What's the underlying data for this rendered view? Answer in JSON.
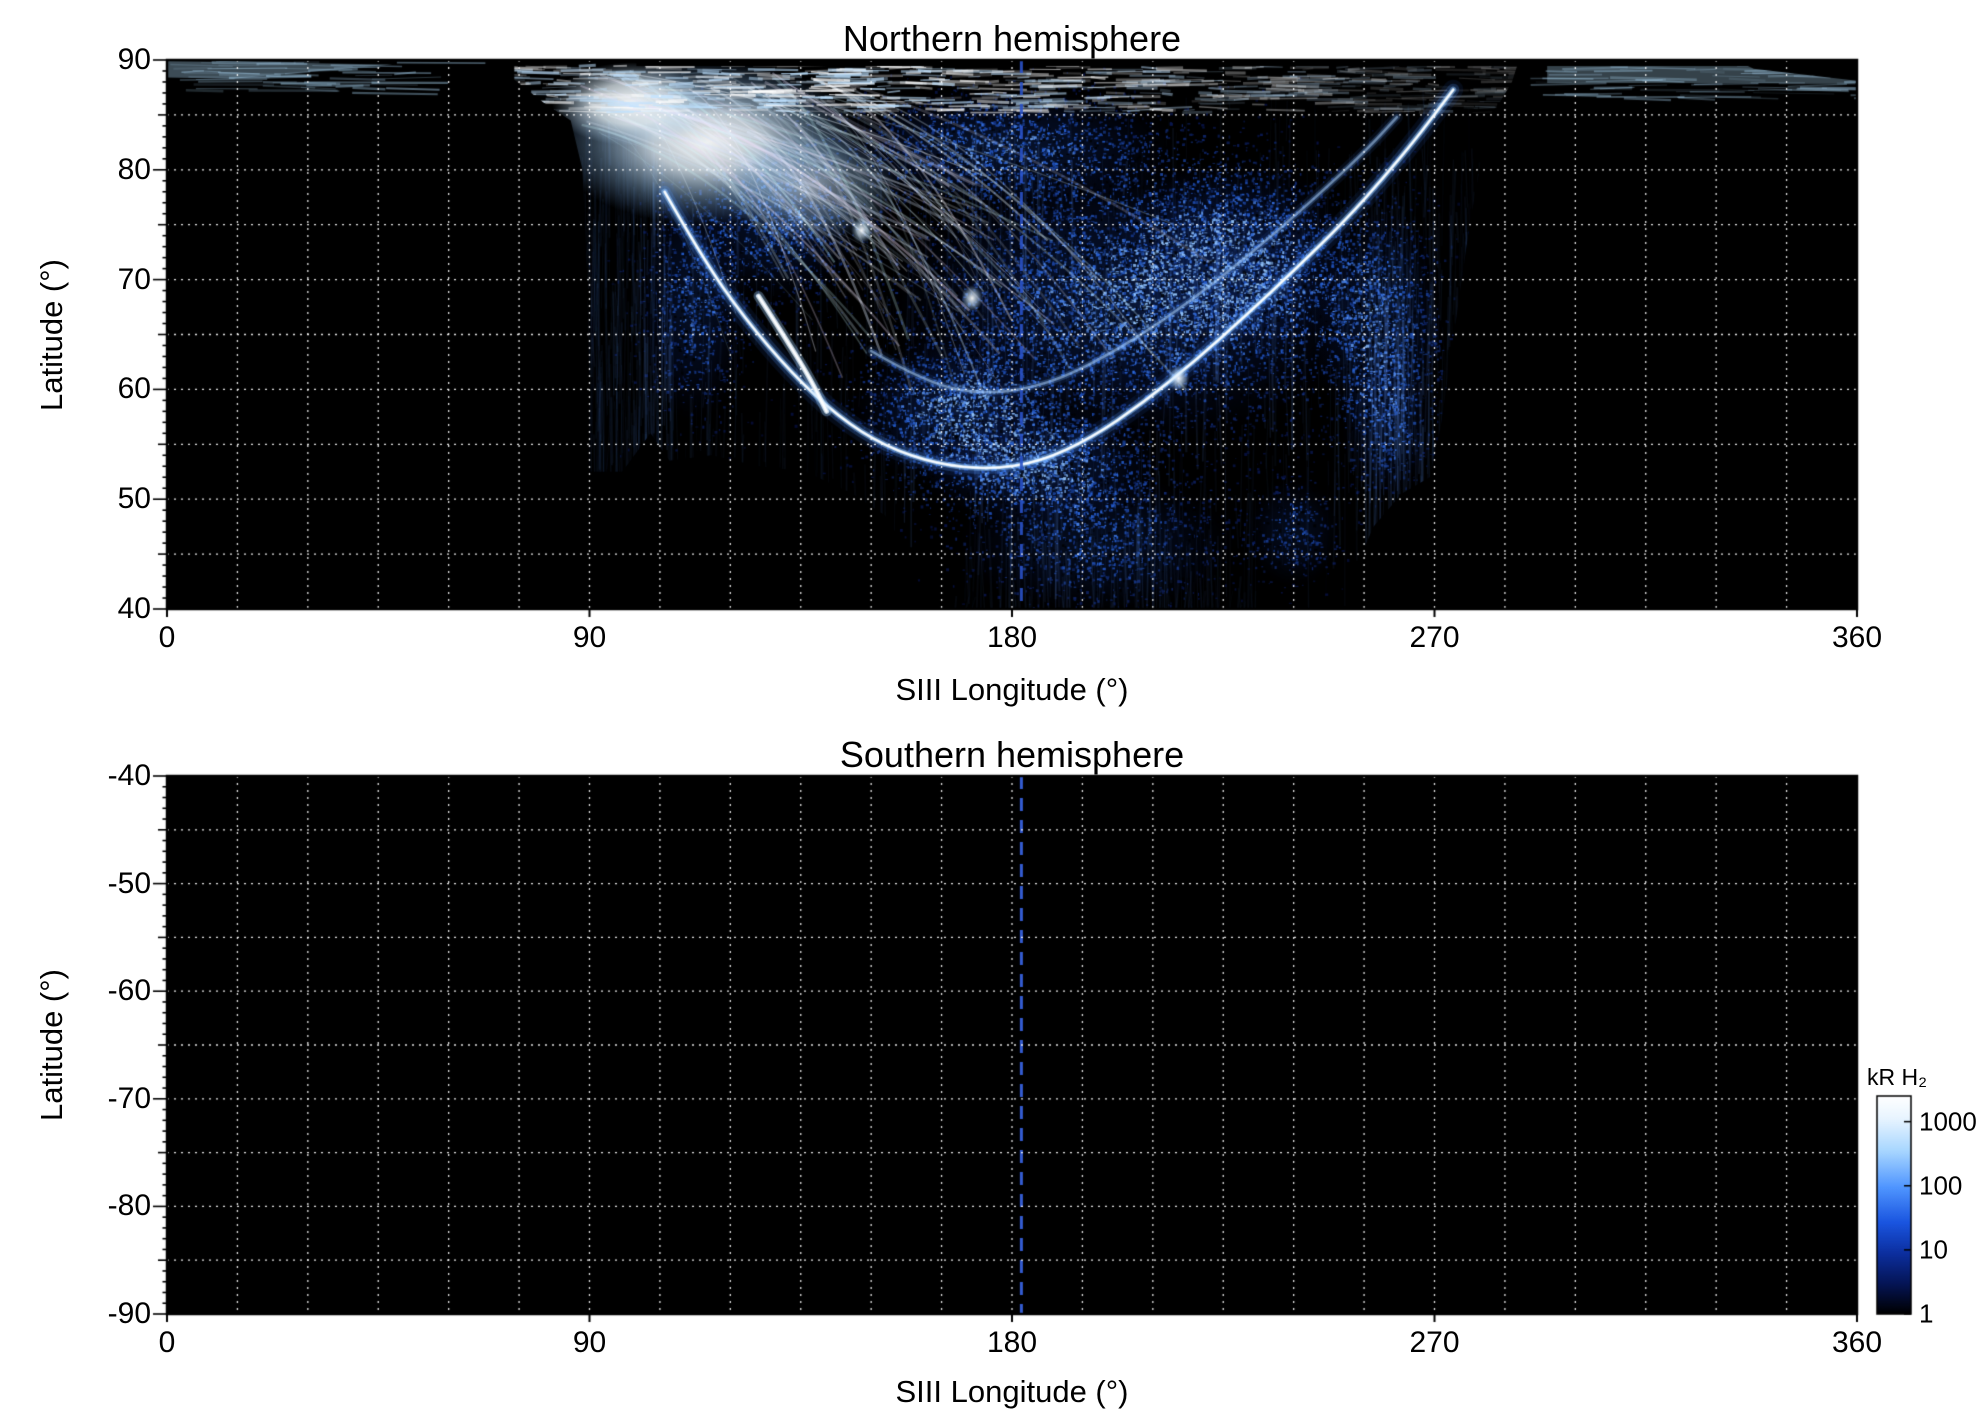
{
  "chart_data": {
    "type": "heatmap",
    "colormap": "log blue (black→blue→white)",
    "panels": [
      {
        "id": "north",
        "title": "Northern hemisphere",
        "xlabel": "SIII Longitude (°)",
        "ylabel": "Latitude (°)",
        "xlim": [
          0,
          360
        ],
        "ylim": [
          40,
          90
        ],
        "xtick_labels": [
          "0",
          "90",
          "180",
          "270",
          "360"
        ],
        "xtick_values": [
          0,
          90,
          180,
          270,
          360
        ],
        "ytick_labels": [
          "90",
          "80",
          "70",
          "60",
          "50",
          "40"
        ],
        "ytick_values": [
          90,
          80,
          70,
          60,
          50,
          40
        ],
        "grid": {
          "x_step_deg": 15,
          "y_step_deg": 5,
          "style": "dotted",
          "color": "#ffffff"
        },
        "background": "#000000",
        "reference_line": {
          "lon": 182,
          "style": "dashed",
          "color": "#2a52c8"
        },
        "aurora": {
          "present": true,
          "region_polygon": [
            [
              74,
              90
            ],
            [
              74,
              88.2
            ],
            [
              80,
              86.2
            ],
            [
              86,
              84.5
            ],
            [
              88.5,
              80
            ],
            [
              89.5,
              70
            ],
            [
              90,
              60
            ],
            [
              90,
              52.5
            ],
            [
              97,
              52.5
            ],
            [
              103,
              56
            ],
            [
              107,
              53.5
            ],
            [
              116,
              54
            ],
            [
              126,
              53
            ],
            [
              136,
              52.5
            ],
            [
              146,
              50.5
            ],
            [
              153,
              48.5
            ],
            [
              158,
              45
            ],
            [
              162,
              40
            ],
            [
              253,
              40
            ],
            [
              253,
              43.5
            ],
            [
              257,
              47.5
            ],
            [
              263,
              50.5
            ],
            [
              269,
              52
            ],
            [
              271.5,
              57
            ],
            [
              273.5,
              63
            ],
            [
              275.5,
              69
            ],
            [
              277.5,
              75
            ],
            [
              280,
              81
            ],
            [
              283,
              85.5
            ],
            [
              286.5,
              88
            ],
            [
              288,
              90
            ]
          ],
          "diffuse_blobs": [
            [
              205,
              68,
              52,
              13,
              0.8
            ],
            [
              168,
              58,
              22,
              7,
              0.85
            ],
            [
              186,
              53,
              26,
              5.5,
              0.8
            ],
            [
              228,
              72,
              26,
              9,
              0.7
            ],
            [
              258,
              66,
              14,
              11,
              0.65
            ],
            [
              112,
              68,
              12,
              11,
              0.6
            ],
            [
              130,
              75,
              18,
              7,
              0.65
            ],
            [
              198,
              46,
              30,
              6.5,
              0.5
            ],
            [
              178,
              82,
              38,
              5.5,
              0.7
            ],
            [
              240,
              47,
              10,
              5,
              0.45
            ],
            [
              260,
              57,
              10,
              7,
              0.5
            ]
          ],
          "main_oval_arc": [
            [
              106,
              78
            ],
            [
              114,
              72
            ],
            [
              123,
              66.5
            ],
            [
              133,
              61.5
            ],
            [
              143,
              57.5
            ],
            [
              153,
              54.8
            ],
            [
              164,
              53.2
            ],
            [
              175,
              52.7
            ],
            [
              186,
              53.4
            ],
            [
              197,
              55.6
            ],
            [
              208,
              58.8
            ],
            [
              219,
              62.6
            ],
            [
              230,
              66.8
            ],
            [
              241,
              71.2
            ],
            [
              251,
              75.4
            ],
            [
              259,
              79.2
            ],
            [
              266,
              82.8
            ],
            [
              271,
              85.6
            ],
            [
              274,
              87.3
            ]
          ],
          "secondary_arc": [
            [
              150,
              63.5
            ],
            [
              162,
              60.5
            ],
            [
              175,
              59.5
            ],
            [
              188,
              60.5
            ],
            [
              200,
              63
            ],
            [
              212,
              66.2
            ],
            [
              224,
              70
            ],
            [
              236,
              74.2
            ],
            [
              247,
              78.4
            ],
            [
              256,
              82
            ],
            [
              262,
              84.8
            ]
          ],
          "bright_segment": [
            [
              126,
              68.5
            ],
            [
              132,
              64.5
            ],
            [
              137,
              61
            ],
            [
              140.5,
              58
            ]
          ],
          "polar_bright_patch": {
            "lon": 115,
            "lat": 82.5,
            "lon_halfwidth": 33,
            "lat_halfwidth": 7.5
          },
          "top_band": {
            "lon_range": [
              55,
              300
            ],
            "lat_range": [
              85.2,
              89.5
            ]
          },
          "top_wisps": [
            {
              "lon_range": [
                0,
                50
              ],
              "lat_range": [
                87,
                90
              ]
            },
            {
              "lon_range": [
                290,
                360
              ],
              "lat_range": [
                86.5,
                89.6
              ]
            }
          ],
          "bright_spots": [
            [
              171.5,
              68.3
            ],
            [
              215.5,
              61
            ],
            [
              148,
              74.5
            ]
          ],
          "low_lat_emission": {
            "lon_range": [
              150,
              255
            ],
            "lat_range": [
              40,
              52
            ]
          }
        }
      },
      {
        "id": "south",
        "title": "Southern hemisphere",
        "xlabel": "SIII Longitude (°)",
        "ylabel": "Latitude (°)",
        "xlim": [
          0,
          360
        ],
        "ylim": [
          -90,
          -40
        ],
        "xtick_labels": [
          "0",
          "90",
          "180",
          "270",
          "360"
        ],
        "xtick_values": [
          0,
          90,
          180,
          270,
          360
        ],
        "ytick_labels": [
          "-40",
          "-50",
          "-60",
          "-70",
          "-80",
          "-90"
        ],
        "ytick_values": [
          -40,
          -50,
          -60,
          -70,
          -80,
          -90
        ],
        "grid": {
          "x_step_deg": 15,
          "y_step_deg": 5,
          "style": "dotted",
          "color": "#ffffff"
        },
        "background": "#000000",
        "reference_line": {
          "lon": 182,
          "style": "dashed",
          "color": "#3a66e8"
        },
        "aurora": {
          "present": false
        }
      }
    ],
    "colorbar": {
      "label": "kR H₂",
      "scale": "log",
      "tick_labels": [
        "1000",
        "100",
        "10",
        "1"
      ],
      "tick_values": [
        1000,
        100,
        10,
        1
      ],
      "range": [
        1,
        2500
      ],
      "gradient": [
        "#ffffff",
        "#e9f5ff",
        "#a9d7ff",
        "#4f95ff",
        "#1a55e0",
        "#0c2fa0",
        "#051556",
        "#000000"
      ]
    }
  }
}
